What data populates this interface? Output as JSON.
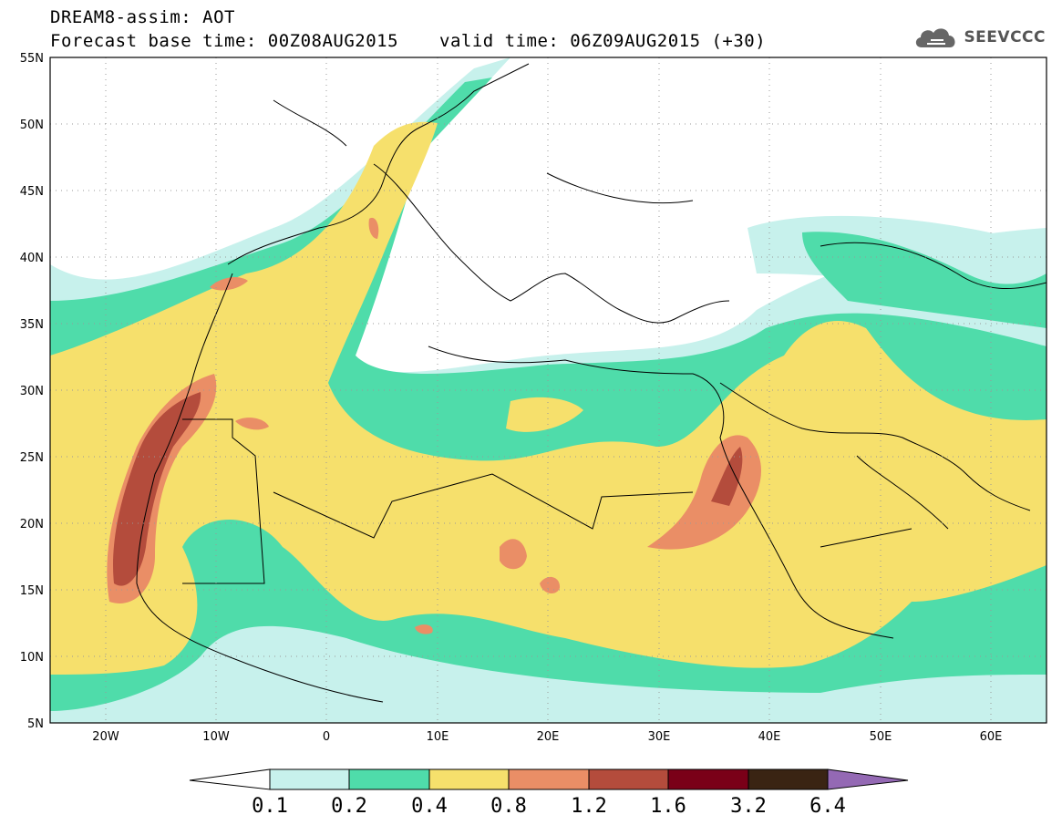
{
  "title": {
    "line1": "DREAM8-assim: AOT",
    "line2_left": "Forecast base time: 00Z08AUG2015",
    "line2_right": "valid time: 06Z09AUG2015 (+30)"
  },
  "logo": {
    "text": "SEEVCCC",
    "icon": "cloud-icon"
  },
  "map": {
    "lon_range": [
      -25,
      65
    ],
    "lat_range": [
      5,
      55
    ],
    "lat_labels": [
      "55N",
      "50N",
      "45N",
      "40N",
      "35N",
      "30N",
      "25N",
      "20N",
      "15N",
      "10N",
      "5N"
    ],
    "lon_labels": [
      "20W",
      "10W",
      "0",
      "10E",
      "20E",
      "30E",
      "40E",
      "50E",
      "60E"
    ]
  },
  "colorbar": {
    "levels": [
      "0.1",
      "0.2",
      "0.4",
      "0.8",
      "1.2",
      "1.6",
      "3.2",
      "6.4"
    ],
    "colors": [
      "#c7f1ec",
      "#4fdcaa",
      "#f6e06c",
      "#ea8e66",
      "#b44c3c",
      "#7a0018",
      "#3a2413",
      "#9469b4"
    ],
    "low_color": "#ffffff",
    "high_color": "#9469b4"
  }
}
